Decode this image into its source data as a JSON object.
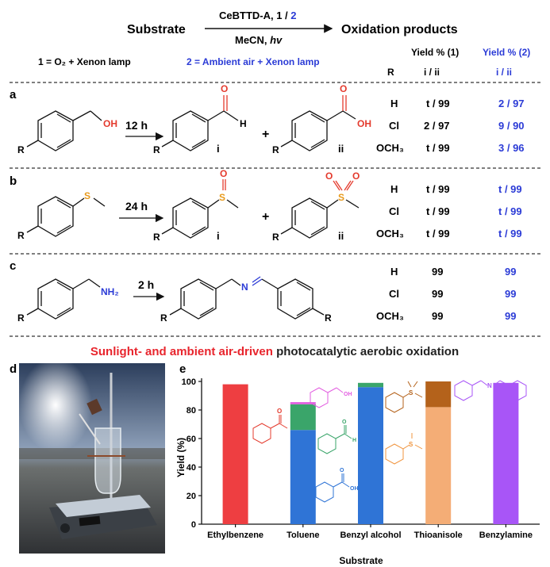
{
  "header": {
    "substrate_label": "Substrate",
    "catalyst_text": "CeBTTD-A,  1 / ",
    "catalyst_num2": "2",
    "solvent_text": "MeCN, ",
    "hv_text": "hv",
    "products_label": "Oxidation products",
    "condition1": "1 = O₂ + Xenon lamp",
    "condition2": "2 = Ambient air + Xenon lamp",
    "col_yield1": "Yield % (1)",
    "col_yield2": "Yield % (2)",
    "col_R": "R",
    "col_sub1": "i / ii",
    "col_sub2": "i / ii"
  },
  "panels": {
    "a": {
      "letter": "a",
      "time": "12 h",
      "plus": "+",
      "prod_i": "i",
      "prod_ii": "ii",
      "R": "R",
      "sub_atom": "OH",
      "ald_O": "O",
      "ald_H": "H",
      "acid_O": "O",
      "acid_OH": "OH",
      "rows": [
        {
          "R": "H",
          "y1": "t / 99",
          "y2": "2 / 97"
        },
        {
          "R": "Cl",
          "y1": "2 / 97",
          "y2": "9 / 90"
        },
        {
          "R": "OCH₃",
          "y1": "t / 99",
          "y2": "3 / 96"
        }
      ]
    },
    "b": {
      "letter": "b",
      "time": "24 h",
      "plus": "+",
      "prod_i": "i",
      "prod_ii": "ii",
      "R": "R",
      "S": "S",
      "O": "O",
      "rows": [
        {
          "R": "H",
          "y1": "t / 99",
          "y2": "t / 99"
        },
        {
          "R": "Cl",
          "y1": "t / 99",
          "y2": "t / 99"
        },
        {
          "R": "OCH₃",
          "y1": "t / 99",
          "y2": "t / 99"
        }
      ]
    },
    "c": {
      "letter": "c",
      "time": "2 h",
      "R": "R",
      "NH2": "NH₂",
      "N": "N",
      "rows": [
        {
          "R": "H",
          "y1": "99",
          "y2": "99"
        },
        {
          "R": "Cl",
          "y1": "99",
          "y2": "99"
        },
        {
          "R": "OCH₃",
          "y1": "99",
          "y2": "99"
        }
      ]
    }
  },
  "footer_title": {
    "red_part": "Sunlight- and ambient air-driven",
    "black_part": " photocatalytic aerobic oxidation"
  },
  "panel_d": {
    "letter": "d"
  },
  "panel_e": {
    "letter": "e",
    "O": "O",
    "OH": "OH",
    "H": "H",
    "S": "S",
    "N": "N"
  },
  "chart_data": {
    "type": "bar",
    "categories": [
      "Ethylbenzene",
      "Toluene",
      "Benzyl alcohol",
      "Thioanisole",
      "Benzylamine"
    ],
    "series": [
      {
        "category": "Ethylbenzene",
        "segments": [
          {
            "product": "acetophenone",
            "value": 98,
            "color": "#ee3e41"
          }
        ]
      },
      {
        "category": "Toluene",
        "segments": [
          {
            "product": "benzoic acid",
            "value": 66,
            "color": "#2f74d6"
          },
          {
            "product": "benzaldehyde",
            "value": 18,
            "color": "#3aa56a"
          },
          {
            "product": "benzyl alcohol",
            "value": 1.5,
            "color": "#e25ce0"
          }
        ]
      },
      {
        "category": "Benzyl alcohol",
        "segments": [
          {
            "product": "benzoic acid",
            "value": 96,
            "color": "#2f74d6"
          },
          {
            "product": "benzaldehyde",
            "value": 3,
            "color": "#3aa56a"
          }
        ]
      },
      {
        "category": "Thioanisole",
        "segments": [
          {
            "product": "sulfoxide",
            "value": 82,
            "color": "#f4ad76"
          },
          {
            "product": "sulfone",
            "value": 18,
            "color": "#b4621b"
          }
        ]
      },
      {
        "category": "Benzylamine",
        "segments": [
          {
            "product": "imine",
            "value": 99,
            "color": "#a855f7"
          }
        ]
      }
    ],
    "xlabel": "Substrate",
    "ylabel": "Yield (%)",
    "ylim": [
      0,
      100
    ],
    "yticks": [
      "0",
      "20",
      "40",
      "60",
      "80",
      "100"
    ],
    "grid": false
  },
  "colors": {
    "red": "#e8252d",
    "blue": "#2b3bd6",
    "orange": "#e89a1c",
    "oxygen": "#e43b2e"
  }
}
